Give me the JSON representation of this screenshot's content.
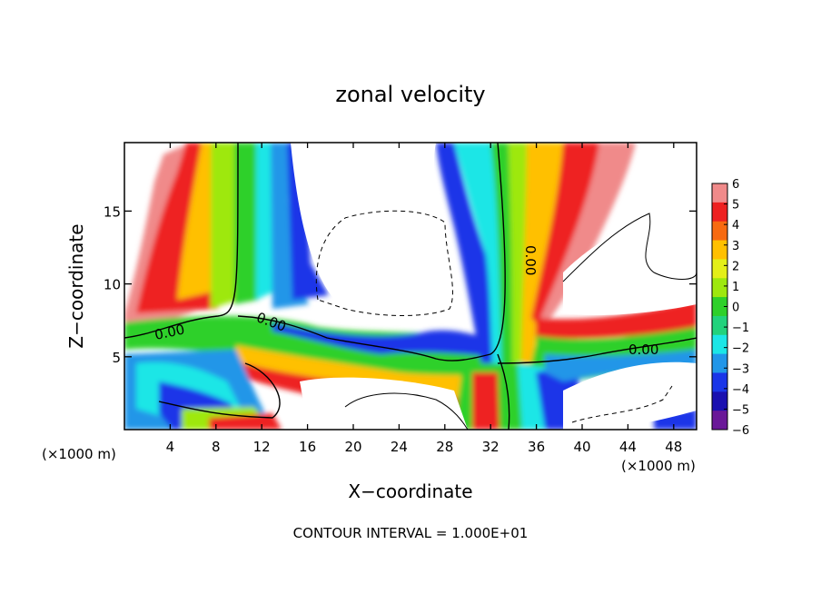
{
  "chart_data": {
    "type": "heatmap",
    "title": "zonal velocity",
    "xlabel": "X−coordinate",
    "ylabel": "Z−coordinate",
    "x_unit_left": "(×1000 m)",
    "x_unit_right": "(×1000 m)",
    "footer": "CONTOUR INTERVAL = 1.000E+01",
    "xlim": [
      0,
      50
    ],
    "ylim": [
      0,
      19.7
    ],
    "x_ticks": [
      4,
      8,
      12,
      16,
      20,
      24,
      28,
      32,
      36,
      40,
      44,
      48
    ],
    "y_ticks": [
      5,
      10,
      15
    ],
    "colorbar": {
      "ticks": [
        6,
        5,
        4,
        3,
        2,
        1,
        0,
        -1,
        -2,
        -3,
        -4,
        -5,
        -6
      ],
      "colors": [
        "#f08a8a",
        "#ee2020",
        "#f76a10",
        "#ffc000",
        "#e4ef18",
        "#9ee80e",
        "#2ed02a",
        "#22d27c",
        "#1ce6e6",
        "#2196e8",
        "#1a36e8",
        "#1a10b0",
        "#6a1898"
      ]
    },
    "contour_labels": [
      "0.00",
      "0.00",
      "0.00",
      "0.00"
    ]
  }
}
